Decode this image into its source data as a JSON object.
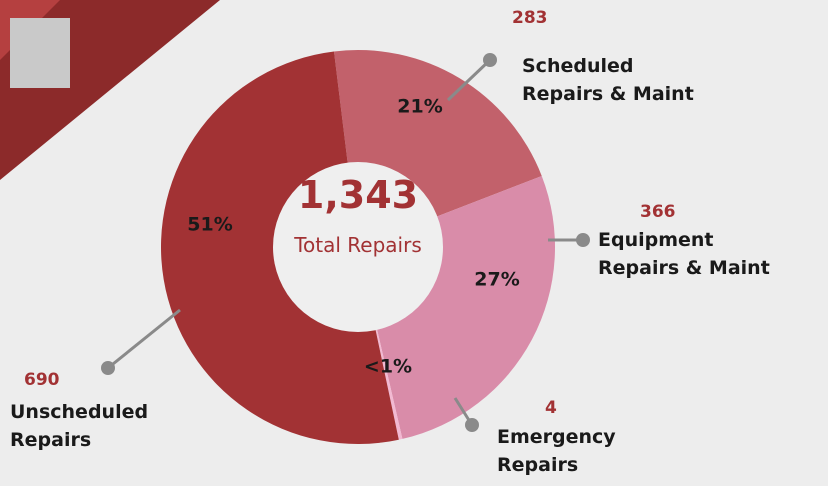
{
  "chart_data": {
    "type": "donut",
    "total": {
      "value": 1343,
      "label": "1,343"
    },
    "total_label": "Total Repairs",
    "categories": [
      "Scheduled Repairs & Maint",
      "Equipment Repairs & Maint",
      "Emergency Repairs",
      "Unscheduled Repairs"
    ],
    "values": [
      283,
      366,
      4,
      690
    ],
    "percent_labels": [
      "21%",
      "27%",
      "<1%",
      "51%"
    ],
    "colors": [
      "#c2616b",
      "#d98ca9",
      "#f2b9d2",
      "#a23234"
    ]
  }
}
